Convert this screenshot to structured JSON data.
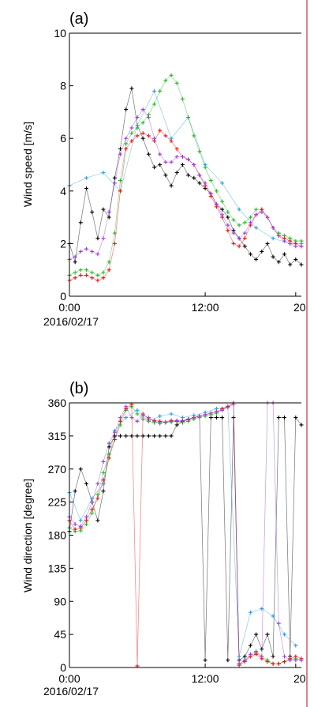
{
  "chart_data": [
    {
      "panel_label": "(a)",
      "type": "line",
      "ylabel": "Wind speed [m/s]",
      "ylim": [
        0,
        10
      ],
      "yticks": [
        "0",
        "2",
        "4",
        "6",
        "8",
        "10"
      ],
      "xticks": [
        "0:00",
        "12:00",
        "20"
      ],
      "xdate": "2016/02/17",
      "xlim_hours": [
        0,
        20.5
      ],
      "grid": false,
      "series": [
        {
          "color": "#000000",
          "x": [
            0,
            0.5,
            1,
            1.5,
            2,
            2.5,
            3,
            3.5,
            4,
            4.5,
            5,
            5.5,
            6,
            6.5,
            7,
            7.5,
            8,
            8.5,
            9,
            9.5,
            10,
            10.5,
            11,
            11.5,
            12,
            12.5,
            13,
            13.5,
            14,
            14.5,
            15,
            15.5,
            16,
            16.5,
            17,
            17.5,
            18,
            18.5,
            19,
            19.5,
            20,
            20.5
          ],
          "values": [
            2.0,
            1.3,
            2.8,
            4.1,
            3.2,
            2.2,
            3.3,
            3.0,
            4.5,
            5.6,
            7.1,
            7.9,
            6.5,
            6.0,
            5.4,
            4.9,
            5.0,
            4.6,
            4.2,
            4.7,
            5.0,
            4.6,
            4.5,
            4.3,
            4.1,
            3.9,
            3.5,
            3.3,
            3.0,
            2.5,
            2.2,
            1.9,
            1.6,
            1.4,
            1.7,
            2.0,
            1.5,
            1.3,
            1.6,
            1.2,
            1.4,
            1.2
          ]
        },
        {
          "color": "#2e9ee0",
          "x": [
            0,
            1.5,
            3,
            4.5,
            6,
            7.5,
            9,
            10.5,
            12,
            13.5,
            15,
            16.5,
            18,
            19.5,
            20.5
          ],
          "values": [
            4.2,
            4.5,
            4.7,
            4.0,
            6.5,
            7.8,
            6.0,
            6.8,
            5.0,
            4.3,
            3.3,
            2.6,
            2.2,
            2.0,
            2.0
          ]
        },
        {
          "color": "#22bb22",
          "x": [
            0,
            0.5,
            1,
            1.5,
            2,
            2.5,
            3,
            3.5,
            4,
            4.5,
            5,
            5.5,
            6,
            6.5,
            7,
            7.5,
            8,
            8.5,
            9,
            9.5,
            10,
            10.5,
            11,
            11.5,
            12,
            12.5,
            13,
            13.5,
            14,
            14.5,
            15,
            15.5,
            16,
            16.5,
            17,
            17.5,
            18,
            18.5,
            19,
            19.5,
            20,
            20.5
          ],
          "values": [
            0.8,
            0.9,
            1.0,
            1.0,
            0.9,
            0.8,
            0.9,
            1.3,
            2.4,
            4.4,
            5.8,
            6.2,
            6.4,
            6.6,
            6.9,
            7.3,
            7.8,
            8.2,
            8.4,
            8.1,
            7.5,
            6.8,
            6.1,
            5.5,
            4.9,
            4.4,
            4.0,
            3.6,
            3.2,
            2.9,
            2.7,
            2.8,
            3.0,
            3.3,
            3.3,
            3.0,
            2.6,
            2.4,
            2.3,
            2.2,
            2.1,
            2.1
          ]
        },
        {
          "color": "#ee1111",
          "x": [
            0,
            0.5,
            1,
            1.5,
            2,
            2.5,
            3,
            3.5,
            4,
            4.5,
            5,
            5.5,
            6,
            6.5,
            7,
            7.5,
            8,
            8.5,
            9,
            9.5,
            10,
            10.5,
            11,
            11.5,
            12,
            12.5,
            13,
            13.5,
            14,
            14.5,
            15,
            15.5,
            16,
            16.5,
            17,
            17.5,
            18,
            18.5,
            19,
            19.5,
            20,
            20.5
          ],
          "values": [
            0.6,
            0.7,
            0.8,
            0.8,
            0.7,
            0.6,
            0.7,
            1.0,
            2.0,
            4.0,
            5.6,
            5.9,
            6.1,
            6.2,
            6.1,
            5.9,
            6.3,
            6.1,
            5.9,
            5.6,
            5.3,
            5.2,
            5.0,
            4.6,
            4.2,
            3.8,
            3.4,
            3.0,
            2.5,
            2.0,
            1.9,
            2.2,
            2.7,
            3.1,
            3.3,
            3.0,
            2.6,
            2.3,
            2.2,
            2.1,
            2.0,
            1.9
          ]
        },
        {
          "color": "#9a3fdc",
          "x": [
            0,
            0.5,
            1,
            1.5,
            2,
            2.5,
            3,
            3.5,
            4,
            4.5,
            5,
            5.5,
            6,
            6.5,
            7,
            7.5,
            8,
            8.5,
            9,
            9.5,
            10,
            10.5,
            11,
            11.5,
            12,
            12.5,
            13,
            13.5,
            14,
            14.5,
            15,
            15.5,
            16,
            16.5,
            17,
            17.5,
            18,
            18.5,
            19,
            19.5,
            20,
            20.5
          ],
          "values": [
            1.4,
            1.5,
            1.7,
            1.8,
            1.7,
            1.6,
            2.2,
            3.2,
            4.3,
            5.4,
            6.0,
            6.4,
            6.8,
            7.1,
            6.8,
            6.0,
            5.4,
            5.1,
            5.1,
            5.3,
            5.3,
            5.2,
            5.0,
            4.6,
            4.3,
            3.9,
            3.5,
            3.1,
            2.7,
            2.4,
            2.2,
            2.4,
            2.8,
            3.1,
            3.2,
            3.0,
            2.6,
            2.3,
            2.1,
            2.0,
            1.9,
            1.9
          ]
        }
      ]
    },
    {
      "panel_label": "(b)",
      "type": "line",
      "ylabel": "Wind direction [degree]",
      "ylim": [
        0,
        360
      ],
      "yticks": [
        "0",
        "45",
        "90",
        "135",
        "180",
        "225",
        "270",
        "315",
        "360"
      ],
      "xticks": [
        "0:00",
        "12:00",
        "20"
      ],
      "xdate": "2016/02/17",
      "xlim_hours": [
        0,
        20.5
      ],
      "grid": false,
      "series": [
        {
          "color": "#000000",
          "x": [
            0,
            0.5,
            1,
            1.5,
            2,
            2.5,
            3,
            3.5,
            4,
            4.5,
            5,
            5.5,
            6,
            6.5,
            7,
            7.5,
            8,
            8.5,
            9,
            9.5,
            10,
            10.5,
            11,
            11.5,
            12,
            12.5,
            13,
            13.5,
            14,
            14.5,
            15,
            15.5,
            16,
            16.5,
            17,
            17.5,
            18,
            18.5,
            19,
            19.5,
            20,
            20.5
          ],
          "values": [
            185,
            240,
            270,
            250,
            225,
            200,
            240,
            300,
            315,
            315,
            315,
            315,
            315,
            315,
            315,
            315,
            315,
            315,
            315,
            330,
            335,
            338,
            340,
            342,
            10,
            340,
            340,
            340,
            10,
            340,
            10,
            15,
            30,
            45,
            25,
            45,
            15,
            340,
            340,
            15,
            340,
            330
          ]
        },
        {
          "color": "#2e9ee0",
          "x": [
            0,
            1,
            2,
            3,
            4,
            5,
            6,
            7,
            8,
            9,
            10,
            11,
            12,
            13,
            14,
            15,
            16,
            17,
            18,
            19,
            20
          ],
          "values": [
            238,
            200,
            230,
            250,
            322,
            340,
            350,
            335,
            342,
            345,
            340,
            343,
            347,
            352,
            355,
            15,
            75,
            80,
            70,
            45,
            30
          ]
        },
        {
          "color": "#22bb22",
          "x": [
            0,
            0.5,
            1,
            1.5,
            2,
            2.5,
            3,
            3.5,
            4,
            4.5,
            5,
            5.5,
            6,
            6.5,
            7,
            7.5,
            8,
            8.5,
            9,
            9.5,
            10,
            10.5,
            11,
            11.5,
            12,
            12.5,
            13,
            13.5,
            14,
            14.5,
            15,
            15.5,
            16,
            16.5,
            17,
            17.5,
            18,
            18.5,
            19,
            19.5,
            20,
            20.5
          ],
          "values": [
            190,
            185,
            186,
            195,
            210,
            235,
            265,
            290,
            310,
            330,
            350,
            355,
            345,
            338,
            335,
            333,
            334,
            333,
            334,
            335,
            333,
            335,
            338,
            340,
            342,
            344,
            346,
            350,
            355,
            360,
            5,
            10,
            15,
            20,
            15,
            10,
            5,
            5,
            8,
            10,
            12,
            10
          ]
        },
        {
          "color": "#ee1111",
          "x": [
            0,
            0.5,
            1,
            1.5,
            2,
            2.5,
            3,
            3.5,
            4,
            4.5,
            5,
            5.5,
            6,
            6.5,
            7,
            7.5,
            8,
            8.5,
            9,
            9.5,
            10,
            10.5,
            11,
            11.5,
            12,
            12.5,
            13,
            13.5,
            14,
            14.5,
            15,
            15.5,
            16,
            16.5,
            17,
            17.5,
            18,
            18.5,
            19,
            19.5,
            20,
            20.5
          ],
          "values": [
            200,
            188,
            190,
            200,
            215,
            230,
            255,
            285,
            310,
            335,
            352,
            358,
            2,
            345,
            338,
            336,
            335,
            334,
            336,
            335,
            335,
            337,
            340,
            342,
            344,
            346,
            348,
            352,
            355,
            360,
            3,
            8,
            15,
            18,
            12,
            8,
            5,
            5,
            8,
            12,
            15,
            12
          ]
        },
        {
          "color": "#9a3fdc",
          "x": [
            0,
            0.5,
            1,
            1.5,
            2,
            2.5,
            3,
            3.5,
            4,
            4.5,
            5,
            5.5,
            6,
            6.5,
            7,
            7.5,
            8,
            8.5,
            9,
            9.5,
            10,
            10.5,
            11,
            11.5,
            12,
            12.5,
            13,
            13.5,
            14,
            14.5,
            15,
            15.5,
            16,
            16.5,
            17,
            17.5,
            18,
            18.5,
            19,
            19.5,
            20,
            20.5
          ],
          "values": [
            205,
            195,
            192,
            205,
            225,
            250,
            280,
            305,
            320,
            340,
            355,
            340,
            335,
            343,
            340,
            335,
            332,
            334,
            335,
            336,
            336,
            338,
            340,
            342,
            344,
            346,
            348,
            350,
            354,
            358,
            5,
            10,
            18,
            22,
            15,
            360,
            360,
            60,
            15,
            10,
            10,
            10
          ]
        }
      ]
    }
  ]
}
